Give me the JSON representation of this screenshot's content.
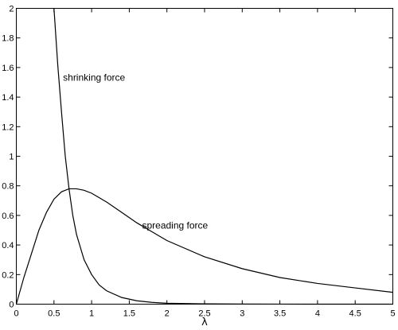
{
  "chart_data": {
    "type": "line",
    "title": "",
    "xlabel": "λ",
    "ylabel": "",
    "xlim": [
      0,
      5
    ],
    "ylim": [
      0,
      2
    ],
    "grid": false,
    "x_ticks": [
      "0",
      "0.5",
      "1",
      "1.5",
      "2",
      "2.5",
      "3",
      "3.5",
      "4",
      "4.5",
      "5"
    ],
    "y_ticks": [
      "0",
      "0.2",
      "0.4",
      "0.6",
      "0.8",
      "1",
      "1.2",
      "1.4",
      "1.6",
      "1.8",
      "2"
    ],
    "series": [
      {
        "x": [
          0.5,
          0.55,
          0.6,
          0.65,
          0.7,
          0.75,
          0.8,
          0.9,
          1.0,
          1.1,
          1.2,
          1.4,
          1.6,
          1.8,
          2.0,
          2.5,
          3.0,
          3.5,
          4.0,
          4.5,
          5.0
        ],
        "values": [
          2.0,
          1.62,
          1.3,
          1.0,
          0.78,
          0.6,
          0.47,
          0.3,
          0.2,
          0.13,
          0.09,
          0.045,
          0.023,
          0.012,
          0.006,
          0.002,
          0.0006,
          0.0002,
          0.0001,
          0.0,
          0.0
        ]
      },
      {
        "x": [
          0,
          0.1,
          0.2,
          0.3,
          0.4,
          0.5,
          0.6,
          0.7,
          0.8,
          0.9,
          1.0,
          1.2,
          1.4,
          1.6,
          1.8,
          2.0,
          2.5,
          3.0,
          3.5,
          4.0,
          4.5,
          5.0
        ],
        "values": [
          0.0,
          0.18,
          0.34,
          0.5,
          0.62,
          0.71,
          0.76,
          0.78,
          0.78,
          0.77,
          0.75,
          0.69,
          0.62,
          0.55,
          0.49,
          0.43,
          0.32,
          0.24,
          0.18,
          0.14,
          0.11,
          0.08
        ]
      }
    ],
    "annotations": [
      {
        "text": "shrinking force",
        "x": 0.62,
        "y": 1.51
      },
      {
        "text": "spreading force",
        "x": 1.67,
        "y": 0.51
      }
    ]
  }
}
